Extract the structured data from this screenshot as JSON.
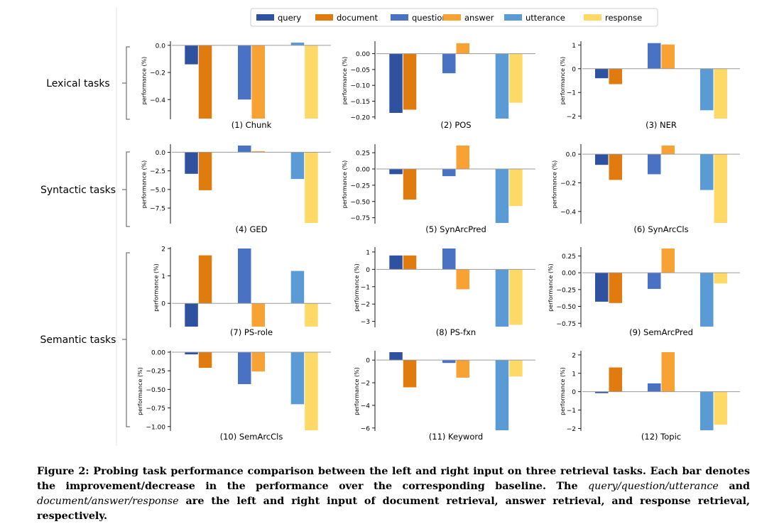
{
  "legend": [
    {
      "key": "query",
      "color": "#2f52a0"
    },
    {
      "key": "document",
      "color": "#e07b0f"
    },
    {
      "key": "question",
      "color": "#4a72c4"
    },
    {
      "key": "answer",
      "color": "#f7a233"
    },
    {
      "key": "utterance",
      "color": "#5b9bd5"
    },
    {
      "key": "response",
      "color": "#ffd966"
    }
  ],
  "ylabel": "performance (%)",
  "groups": [
    {
      "label": "Lexical tasks"
    },
    {
      "label": "Syntactic tasks"
    },
    {
      "label": "Semantic tasks"
    }
  ],
  "chart_data": [
    {
      "type": "bar",
      "title": "(1) Chunk",
      "ylabel": "performance (%)",
      "ticks": [
        0.0,
        -0.2,
        -0.4
      ],
      "tick_labels": [
        "0.0",
        "−0.2",
        "−0.4"
      ],
      "ylim": [
        -0.54,
        0.02
      ],
      "series": [
        {
          "name": "query",
          "value": -0.14
        },
        {
          "name": "document",
          "value": -0.54
        },
        {
          "name": "question",
          "value": -0.4
        },
        {
          "name": "answer",
          "value": -0.54
        },
        {
          "name": "utterance",
          "value": 0.02
        },
        {
          "name": "response",
          "value": -0.54
        }
      ]
    },
    {
      "type": "bar",
      "title": "(2) POS",
      "ylabel": "performance (%)",
      "ticks": [
        0.0,
        -0.05,
        -0.1,
        -0.15,
        -0.2
      ],
      "tick_labels": [
        "0.00",
        "−0.05",
        "−0.10",
        "−0.15",
        "−0.20"
      ],
      "ylim": [
        -0.205,
        0.035
      ],
      "series": [
        {
          "name": "query",
          "value": -0.187
        },
        {
          "name": "document",
          "value": -0.177
        },
        {
          "name": "question",
          "value": -0.062
        },
        {
          "name": "answer",
          "value": 0.033
        },
        {
          "name": "utterance",
          "value": -0.205
        },
        {
          "name": "response",
          "value": -0.155
        }
      ]
    },
    {
      "type": "bar",
      "title": "(3) NER",
      "ylabel": "performance (%)",
      "ticks": [
        1,
        0,
        -1,
        -2
      ],
      "tick_labels": [
        "1",
        "0",
        "−1",
        "−2"
      ],
      "ylim": [
        -2.1,
        1.1
      ],
      "series": [
        {
          "name": "query",
          "value": -0.4
        },
        {
          "name": "document",
          "value": -0.65
        },
        {
          "name": "question",
          "value": 1.08
        },
        {
          "name": "answer",
          "value": 1.02
        },
        {
          "name": "utterance",
          "value": -1.75
        },
        {
          "name": "response",
          "value": -2.1
        }
      ]
    },
    {
      "type": "bar",
      "title": "(4) GED",
      "ylabel": "performance (%)",
      "ticks": [
        0.0,
        -2.5,
        -5.0,
        -7.5
      ],
      "tick_labels": [
        "0.0",
        "−2.5",
        "−5.0",
        "−7.5"
      ],
      "ylim": [
        -9.5,
        0.9
      ],
      "series": [
        {
          "name": "query",
          "value": -2.9
        },
        {
          "name": "document",
          "value": -5.1
        },
        {
          "name": "question",
          "value": 0.9
        },
        {
          "name": "answer",
          "value": 0.15
        },
        {
          "name": "utterance",
          "value": -3.6
        },
        {
          "name": "response",
          "value": -9.5
        }
      ]
    },
    {
      "type": "bar",
      "title": "(5) SynArcPred",
      "ylabel": "performance (%)",
      "ticks": [
        0.25,
        0.0,
        -0.25,
        -0.5,
        -0.75
      ],
      "tick_labels": [
        "0.25",
        "0.00",
        "−0.25",
        "−0.50",
        "−0.75"
      ],
      "ylim": [
        -0.83,
        0.36
      ],
      "series": [
        {
          "name": "query",
          "value": -0.08
        },
        {
          "name": "document",
          "value": -0.47
        },
        {
          "name": "question",
          "value": -0.11
        },
        {
          "name": "answer",
          "value": 0.36
        },
        {
          "name": "utterance",
          "value": -0.83
        },
        {
          "name": "response",
          "value": -0.57
        }
      ]
    },
    {
      "type": "bar",
      "title": "(6) SynArcCls",
      "ylabel": "performance (%)",
      "ticks": [
        0.0,
        -0.2,
        -0.4
      ],
      "tick_labels": [
        "0.0",
        "−0.2",
        "−0.4"
      ],
      "ylim": [
        -0.48,
        0.06
      ],
      "series": [
        {
          "name": "query",
          "value": -0.075
        },
        {
          "name": "document",
          "value": -0.18
        },
        {
          "name": "question",
          "value": -0.14
        },
        {
          "name": "answer",
          "value": 0.06
        },
        {
          "name": "utterance",
          "value": -0.25
        },
        {
          "name": "response",
          "value": -0.48
        }
      ]
    },
    {
      "type": "bar",
      "title": "(7) PS-role",
      "ylabel": "performance (%)",
      "ticks": [
        2,
        1,
        0
      ],
      "tick_labels": [
        "2",
        "1",
        "0"
      ],
      "ylim": [
        -0.85,
        2.0
      ],
      "series": [
        {
          "name": "query",
          "value": -0.85
        },
        {
          "name": "document",
          "value": 1.75
        },
        {
          "name": "question",
          "value": 2.0
        },
        {
          "name": "answer",
          "value": -0.85
        },
        {
          "name": "utterance",
          "value": 1.18
        },
        {
          "name": "response",
          "value": -0.85
        }
      ]
    },
    {
      "type": "bar",
      "title": "(8) PS-fxn",
      "ylabel": "performance (%)",
      "ticks": [
        1,
        0,
        -1,
        -2,
        -3
      ],
      "tick_labels": [
        "1",
        "0",
        "−1",
        "−2",
        "−3"
      ],
      "ylim": [
        -3.3,
        1.2
      ],
      "series": [
        {
          "name": "query",
          "value": 0.8
        },
        {
          "name": "document",
          "value": 0.8
        },
        {
          "name": "question",
          "value": 1.2
        },
        {
          "name": "answer",
          "value": -1.15
        },
        {
          "name": "utterance",
          "value": -3.3
        },
        {
          "name": "response",
          "value": -3.2
        }
      ]
    },
    {
      "type": "bar",
      "title": "(9) SemArcPred",
      "ylabel": "performance (%)",
      "ticks": [
        0.25,
        0.0,
        -0.25,
        -0.5,
        -0.75
      ],
      "tick_labels": [
        "0.25",
        "0.00",
        "−0.25",
        "−0.50",
        "−0.75"
      ],
      "ylim": [
        -0.8,
        0.36
      ],
      "series": [
        {
          "name": "query",
          "value": -0.43
        },
        {
          "name": "document",
          "value": -0.45
        },
        {
          "name": "question",
          "value": -0.24
        },
        {
          "name": "answer",
          "value": 0.36
        },
        {
          "name": "utterance",
          "value": -0.8
        },
        {
          "name": "response",
          "value": -0.16
        }
      ]
    },
    {
      "type": "bar",
      "title": "(10) SemArcCls",
      "ylabel": "performance (%)",
      "ticks": [
        0.0,
        -0.25,
        -0.5,
        -0.75,
        -1.0
      ],
      "tick_labels": [
        "0.00",
        "−0.25",
        "−0.50",
        "−0.75",
        "−1.00"
      ],
      "ylim": [
        -1.05,
        0.0
      ],
      "series": [
        {
          "name": "query",
          "value": -0.03
        },
        {
          "name": "document",
          "value": -0.21
        },
        {
          "name": "question",
          "value": -0.43
        },
        {
          "name": "answer",
          "value": -0.26
        },
        {
          "name": "utterance",
          "value": -0.7
        },
        {
          "name": "response",
          "value": -1.05
        }
      ]
    },
    {
      "type": "bar",
      "title": "(11) Keyword",
      "ylabel": "performance (%)",
      "ticks": [
        0,
        -2,
        -4,
        -6
      ],
      "tick_labels": [
        "0",
        "−2",
        "−4",
        "−6"
      ],
      "ylim": [
        -6.2,
        0.7
      ],
      "series": [
        {
          "name": "query",
          "value": 0.7
        },
        {
          "name": "document",
          "value": -2.4
        },
        {
          "name": "question",
          "value": -0.25
        },
        {
          "name": "answer",
          "value": -1.55
        },
        {
          "name": "utterance",
          "value": -6.2
        },
        {
          "name": "response",
          "value": -1.45
        }
      ]
    },
    {
      "type": "bar",
      "title": "(12) Topic",
      "ylabel": "performance (%)",
      "ticks": [
        2,
        1,
        0,
        -1,
        -2
      ],
      "tick_labels": [
        "2",
        "1",
        "0",
        "−1",
        "−2"
      ],
      "ylim": [
        -2.1,
        2.15
      ],
      "series": [
        {
          "name": "query",
          "value": -0.08
        },
        {
          "name": "document",
          "value": 1.32
        },
        {
          "name": "question",
          "value": 0.45
        },
        {
          "name": "answer",
          "value": 2.15
        },
        {
          "name": "utterance",
          "value": -2.1
        },
        {
          "name": "response",
          "value": -1.8
        }
      ]
    }
  ],
  "caption": {
    "label": "Figure 2:",
    "text_before": " Probing task performance comparison between the left and right input on three retrieval tasks. Each bar denotes the improvement/decrease in the performance over the corresponding baseline. The ",
    "left_terms": "query/question/utterance",
    "text_middle": " and ",
    "right_terms": "document/answer/response",
    "text_after": " are the left and right input of document retrieval, answer retrieval, and response retrieval, respectively."
  }
}
